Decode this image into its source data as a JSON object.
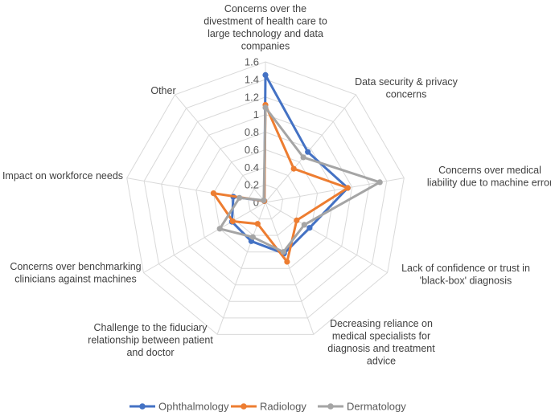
{
  "chart_data": {
    "type": "radar",
    "title": "",
    "categories": [
      "Concerns over the divestment of health care to large technology and data companies",
      "Data security & privacy concerns",
      "Concerns over medical liability due to machine error",
      "Lack of confidence or trust in 'black-box' diagnosis",
      "Decreasing reliance on medical specialists for diagnosis and treatment advice",
      "Challenge to the fiduciary relationship between patient and doctor",
      "Concerns over benchmarking clinicians against machines",
      "Impact on workforce needs",
      "Other"
    ],
    "category_lines": [
      [
        "Concerns over the",
        "divestment of health care to",
        "large technology and data",
        "companies"
      ],
      [
        "Data security & privacy",
        "concerns"
      ],
      [
        "Concerns over medical",
        "liability due to machine error"
      ],
      [
        "Lack of confidence or trust in",
        "'black-box' diagnosis"
      ],
      [
        "Decreasing reliance on",
        "medical specialists for",
        "diagnosis and treatment",
        "advice"
      ],
      [
        "Challenge to the fiduciary",
        "relationship between patient",
        "and doctor"
      ],
      [
        "Concerns over benchmarking",
        "clinicians against machines"
      ],
      [
        "Impact on workforce needs"
      ],
      [
        "Other"
      ]
    ],
    "rlim": [
      0,
      1.6
    ],
    "ticks": [
      "0",
      "0.2",
      "0.4",
      "0.6",
      "0.8",
      "1",
      "1.2",
      "1.4",
      "1.6"
    ],
    "tick_values": [
      0,
      0.2,
      0.4,
      0.6,
      0.8,
      1,
      1.2,
      1.4,
      1.6
    ],
    "legend_position": "bottom",
    "grid": true,
    "series": [
      {
        "name": "Ophthalmology",
        "color": "#4472C4",
        "values": [
          1.45,
          0.75,
          0.95,
          0.58,
          0.62,
          0.47,
          0.44,
          0.37,
          0.02
        ]
      },
      {
        "name": "Radiology",
        "color": "#ED7D31",
        "values": [
          1.11,
          0.5,
          0.95,
          0.41,
          0.72,
          0.26,
          0.43,
          0.6,
          0.02
        ]
      },
      {
        "name": "Dermatology",
        "color": "#A5A5A5",
        "values": [
          1.08,
          0.67,
          1.32,
          0.51,
          0.6,
          0.42,
          0.6,
          0.3,
          0.03
        ]
      }
    ]
  }
}
